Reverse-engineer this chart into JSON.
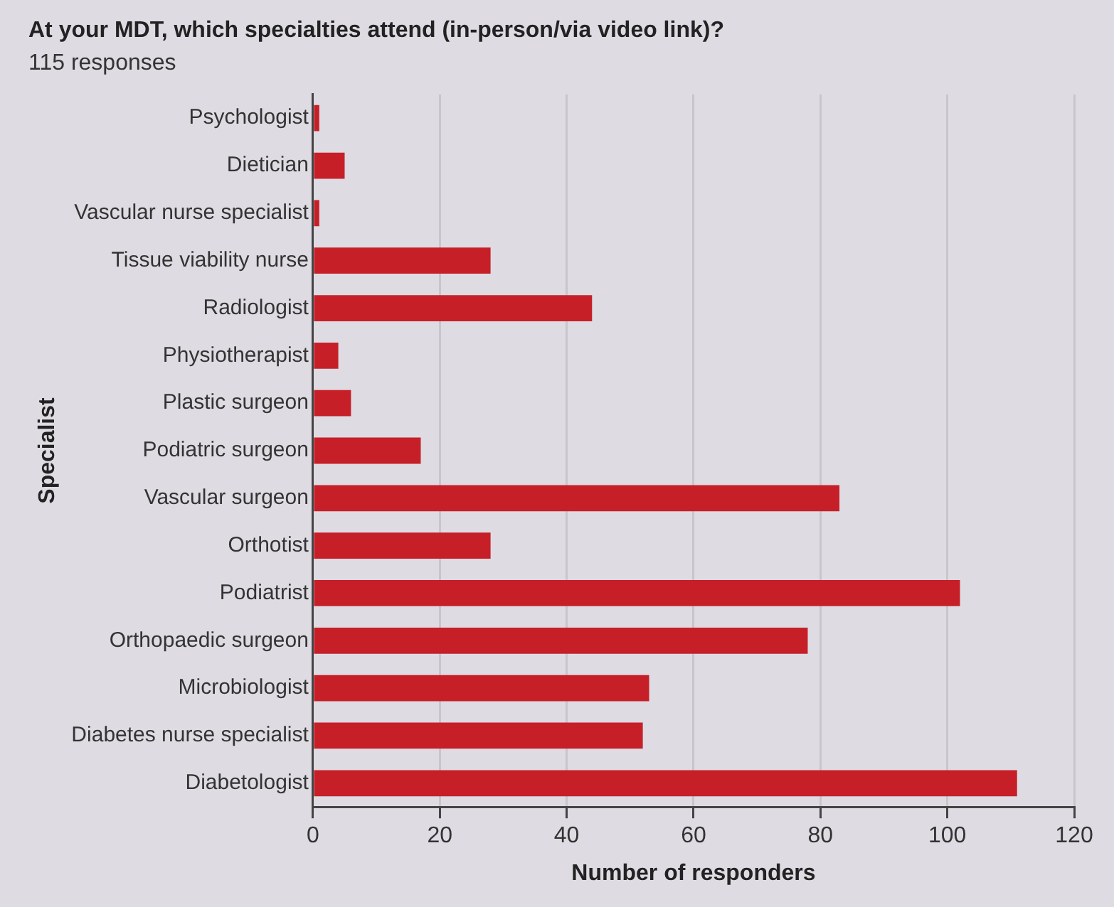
{
  "chart_data": {
    "type": "bar",
    "orientation": "horizontal",
    "title": "At your MDT, which specialties attend (in-person/via video link)?",
    "subtitle": "115 responses",
    "xlabel": "Number of responders",
    "ylabel": "Specialist",
    "categories": [
      "Psychologist",
      "Dietician",
      "Vascular nurse specialist",
      "Tissue viability nurse",
      "Radiologist",
      "Physiotherapist",
      "Plastic surgeon",
      "Podiatric surgeon",
      "Vascular surgeon",
      "Orthotist",
      "Podiatrist",
      "Orthopaedic surgeon",
      "Microbiologist",
      "Diabetes nurse specialist",
      "Diabetologist"
    ],
    "values": [
      1,
      5,
      1,
      28,
      44,
      4,
      6,
      17,
      83,
      28,
      102,
      78,
      53,
      52,
      111
    ],
    "color": "#c61f28",
    "xlim": [
      0,
      120
    ],
    "xticks": [
      0,
      20,
      40,
      60,
      80,
      100,
      120
    ],
    "grid": "x",
    "legend": false
  }
}
